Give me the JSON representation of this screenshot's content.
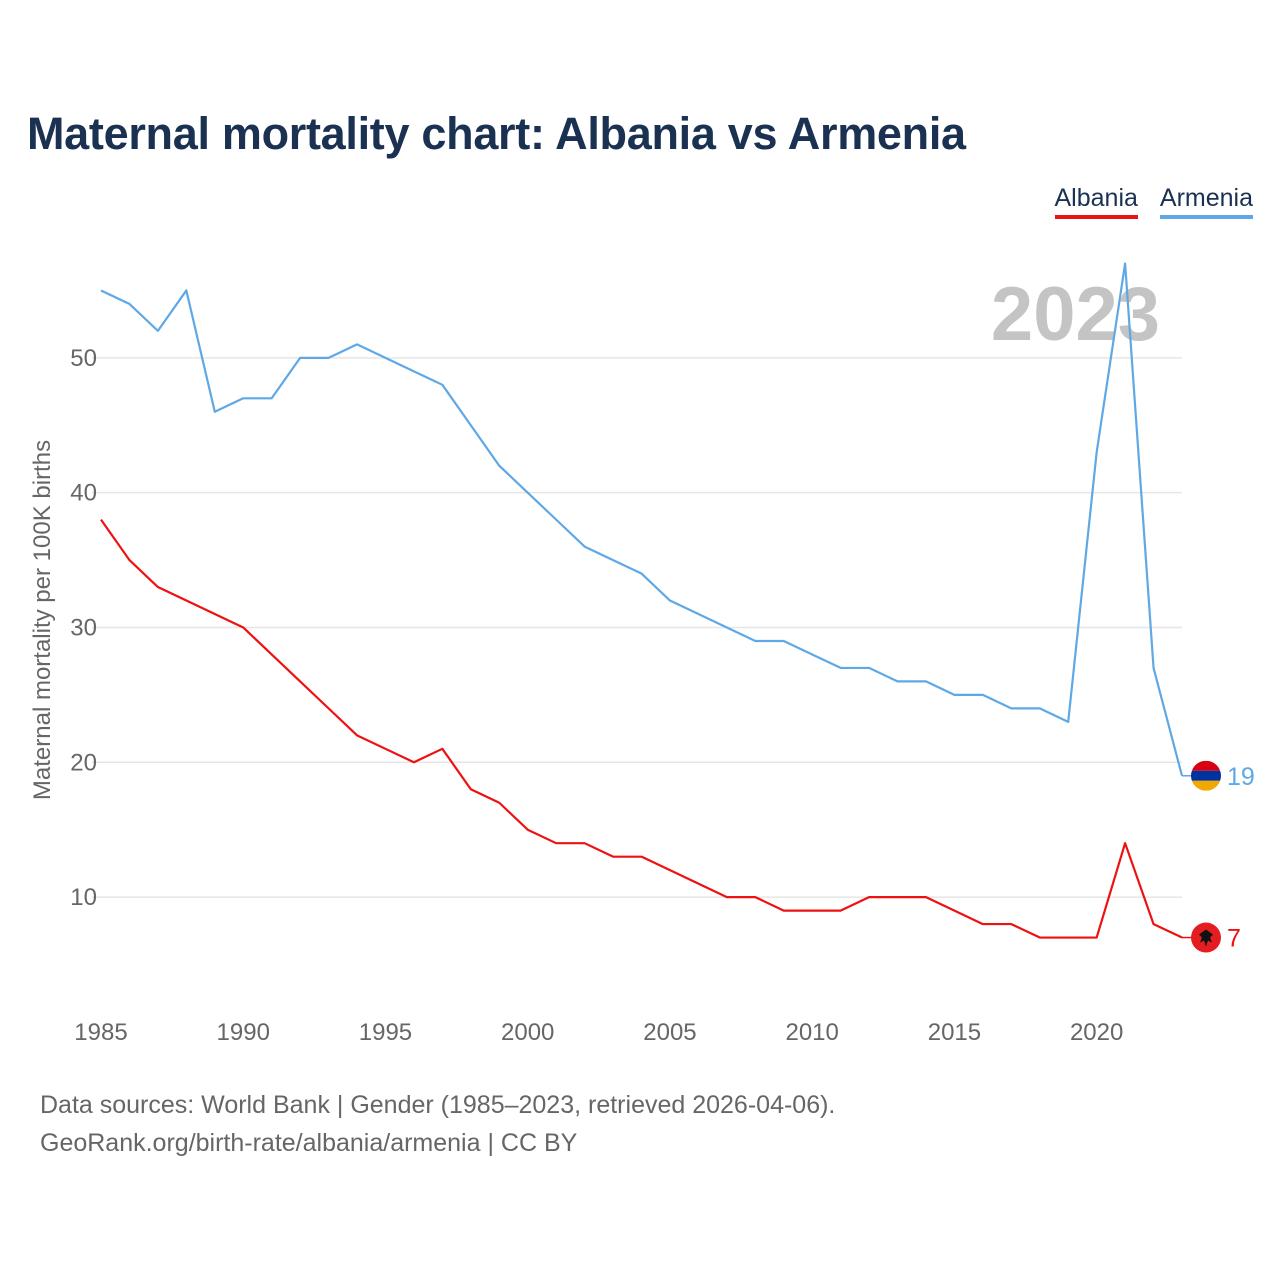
{
  "title": "Maternal mortality chart: Albania vs Armenia",
  "legend": [
    {
      "label": "Albania",
      "color": "#ee1111"
    },
    {
      "label": "Armenia",
      "color": "#5fa8e6"
    }
  ],
  "sources": {
    "line1": "Data sources: World Bank | Gender (1985–2023, retrieved 2026-04-06).",
    "line2": "GeoRank.org/birth-rate/albania/armenia | CC BY"
  },
  "chart_data": {
    "type": "line",
    "title": "Maternal mortality chart: Albania vs Armenia",
    "year_label": "2023",
    "ylabel": "Maternal mortality per 100K births",
    "xlabel": "",
    "xlim": [
      1985,
      2023
    ],
    "ylim": [
      4,
      58
    ],
    "x_ticks": [
      1985,
      1990,
      1995,
      2000,
      2005,
      2010,
      2015,
      2020
    ],
    "y_ticks": [
      10,
      20,
      30,
      40,
      50
    ],
    "grid": true,
    "legend_position": "top-right",
    "x": [
      1985,
      1986,
      1987,
      1988,
      1989,
      1990,
      1991,
      1992,
      1993,
      1994,
      1995,
      1996,
      1997,
      1998,
      1999,
      2000,
      2001,
      2002,
      2003,
      2004,
      2005,
      2006,
      2007,
      2008,
      2009,
      2010,
      2011,
      2012,
      2013,
      2014,
      2015,
      2016,
      2017,
      2018,
      2019,
      2020,
      2021,
      2022,
      2023
    ],
    "series": [
      {
        "name": "Albania",
        "color": "#ee1111",
        "end_label": "7",
        "flag": "albania-flag-icon",
        "values": [
          38,
          35,
          33,
          32,
          31,
          30,
          28,
          26,
          24,
          22,
          21,
          20,
          21,
          18,
          17,
          15,
          14,
          14,
          13,
          13,
          12,
          11,
          10,
          10,
          9,
          9,
          9,
          10,
          10,
          10,
          9,
          8,
          8,
          7,
          7,
          7,
          14,
          8,
          7
        ]
      },
      {
        "name": "Armenia",
        "color": "#5fa8e6",
        "end_label": "19",
        "flag": "armenia-flag-icon",
        "values": [
          55,
          54,
          52,
          55,
          46,
          47,
          47,
          50,
          50,
          51,
          50,
          49,
          48,
          45,
          42,
          40,
          38,
          36,
          35,
          34,
          32,
          31,
          30,
          29,
          29,
          28,
          27,
          27,
          26,
          26,
          25,
          25,
          24,
          24,
          23,
          43,
          57,
          27,
          19
        ]
      }
    ]
  }
}
